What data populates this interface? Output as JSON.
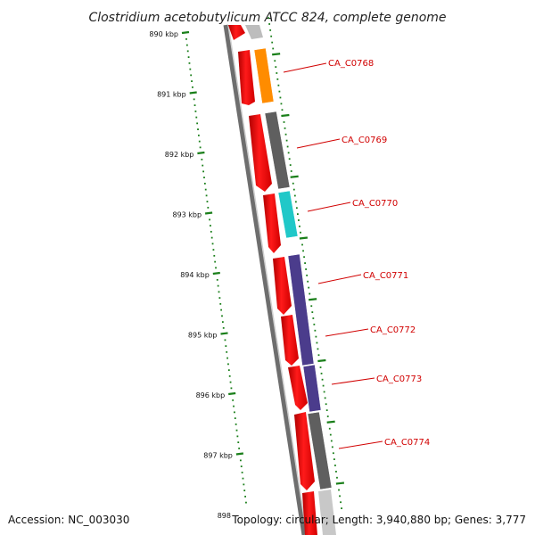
{
  "map": {
    "title": "Clostridium acetobutylicum ATCC 824, complete genome",
    "accession": "Accession: NC_003030",
    "summary": "Topology: circular; Length: 3,940,880 bp; Genes: 3,777"
  },
  "ticks": [
    {
      "label": "890 kbp"
    },
    {
      "label": "891 kbp"
    },
    {
      "label": "892 kbp"
    },
    {
      "label": "893 kbp"
    },
    {
      "label": "894 kbp"
    },
    {
      "label": "895 kbp"
    },
    {
      "label": "896 kbp"
    },
    {
      "label": "897 kbp"
    },
    {
      "label": "898"
    }
  ],
  "genes": [
    {
      "name": "CA_C0768",
      "color": "#ff8c00"
    },
    {
      "name": "CA_C0769",
      "color": "#5f5f5f"
    },
    {
      "name": "CA_C0770",
      "color": "#20c8c8"
    },
    {
      "name": "CA_C0771",
      "color": "#4b3c8c"
    },
    {
      "name": "CA_C0772",
      "color": "#4b3c8c"
    },
    {
      "name": "CA_C0773",
      "color": "#4b3c8c"
    },
    {
      "name": "CA_C0774",
      "color": "#5f5f5f"
    }
  ],
  "colors": {
    "cds": "#ff0000",
    "label": "#d10000",
    "tick": "#1a7f1a",
    "backbone": "#6e6e6e"
  }
}
